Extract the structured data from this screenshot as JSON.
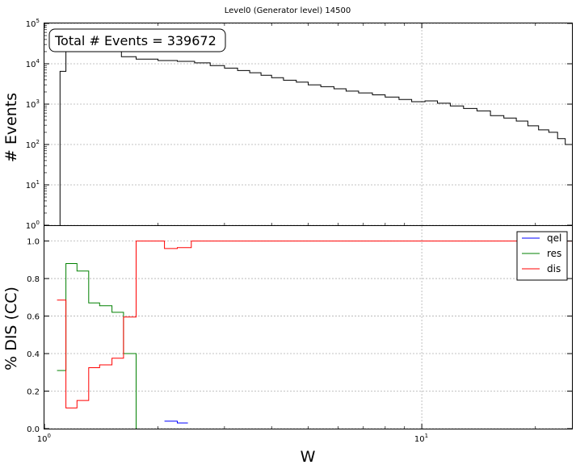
{
  "title": "Level0 (Generator level) 14500",
  "chart_data": [
    {
      "type": "histogram",
      "scale": {
        "x": "log",
        "y": "log"
      },
      "xlim": [
        1,
        25
      ],
      "ylim": [
        1,
        100000
      ],
      "ylabel": "# Events",
      "grid": true,
      "annotation": "Total # Events = 339672",
      "ytick_labels": [
        "10^0",
        "10^1",
        "10^2",
        "10^3",
        "10^4",
        "10^5"
      ],
      "y_ticks": [
        1,
        10,
        100,
        1000,
        10000,
        100000
      ],
      "bins": [
        {
          "x0": 1.1,
          "x1": 1.14,
          "v": 6500
        },
        {
          "x0": 1.14,
          "x1": 1.6,
          "v": 40000
        },
        {
          "x0": 1.6,
          "x1": 1.75,
          "v": 15000
        },
        {
          "x0": 1.75,
          "x1": 2.0,
          "v": 13000
        },
        {
          "x0": 2.0,
          "x1": 2.25,
          "v": 12000
        },
        {
          "x0": 2.25,
          "x1": 2.5,
          "v": 11500
        },
        {
          "x0": 2.5,
          "x1": 2.75,
          "v": 10500
        },
        {
          "x0": 2.75,
          "x1": 3.0,
          "v": 9000
        },
        {
          "x0": 3.0,
          "x1": 3.25,
          "v": 7800
        },
        {
          "x0": 3.25,
          "x1": 3.5,
          "v": 6800
        },
        {
          "x0": 3.5,
          "x1": 3.75,
          "v": 6000
        },
        {
          "x0": 3.75,
          "x1": 4.0,
          "v": 5200
        },
        {
          "x0": 4.0,
          "x1": 4.3,
          "v": 4500
        },
        {
          "x0": 4.3,
          "x1": 4.65,
          "v": 3900
        },
        {
          "x0": 4.65,
          "x1": 5.0,
          "v": 3500
        },
        {
          "x0": 5.0,
          "x1": 5.4,
          "v": 3000
        },
        {
          "x0": 5.4,
          "x1": 5.85,
          "v": 2700
        },
        {
          "x0": 5.85,
          "x1": 6.3,
          "v": 2400
        },
        {
          "x0": 6.3,
          "x1": 6.8,
          "v": 2100
        },
        {
          "x0": 6.8,
          "x1": 7.4,
          "v": 1900
        },
        {
          "x0": 7.4,
          "x1": 8.0,
          "v": 1700
        },
        {
          "x0": 8.0,
          "x1": 8.7,
          "v": 1500
        },
        {
          "x0": 8.7,
          "x1": 9.4,
          "v": 1300
        },
        {
          "x0": 9.4,
          "x1": 10.2,
          "v": 1150
        },
        {
          "x0": 10.2,
          "x1": 11.0,
          "v": 1200
        },
        {
          "x0": 11.0,
          "x1": 11.9,
          "v": 1050
        },
        {
          "x0": 11.9,
          "x1": 12.9,
          "v": 900
        },
        {
          "x0": 12.9,
          "x1": 14.0,
          "v": 780
        },
        {
          "x0": 14.0,
          "x1": 15.2,
          "v": 680
        },
        {
          "x0": 15.2,
          "x1": 16.5,
          "v": 520
        },
        {
          "x0": 16.5,
          "x1": 17.8,
          "v": 450
        },
        {
          "x0": 17.8,
          "x1": 19.1,
          "v": 380
        },
        {
          "x0": 19.1,
          "x1": 20.4,
          "v": 290
        },
        {
          "x0": 20.4,
          "x1": 21.7,
          "v": 230
        },
        {
          "x0": 21.7,
          "x1": 22.9,
          "v": 200
        },
        {
          "x0": 22.9,
          "x1": 24.0,
          "v": 140
        },
        {
          "x0": 24.0,
          "x1": 25.0,
          "v": 100
        }
      ]
    },
    {
      "type": "step",
      "scale": {
        "x": "log",
        "y": "linear"
      },
      "xlim": [
        1,
        25
      ],
      "ylim": [
        0,
        1.08
      ],
      "xlabel": "W",
      "ylabel": "% DIS (CC)",
      "grid": true,
      "legend": "top-right",
      "ytick_labels": [
        "0.0",
        "0.2",
        "0.4",
        "0.6",
        "0.8",
        "1.0"
      ],
      "y_ticks": [
        0,
        0.2,
        0.4,
        0.6,
        0.8,
        1.0
      ],
      "xtick_labels": [
        "10^0",
        "10^1"
      ],
      "x_ticks": [
        1,
        10
      ],
      "series": [
        {
          "name": "qel",
          "color": "#0000ff",
          "steps": [
            {
              "x0": 2.08,
              "x1": 2.25,
              "v": 0.04
            },
            {
              "x0": 2.25,
              "x1": 2.4,
              "v": 0.03
            }
          ]
        },
        {
          "name": "res",
          "color": "#008000",
          "steps": [
            {
              "x0": 1.08,
              "x1": 1.14,
              "v": 0.31
            },
            {
              "x0": 1.14,
              "x1": 1.22,
              "v": 0.88
            },
            {
              "x0": 1.22,
              "x1": 1.31,
              "v": 0.84
            },
            {
              "x0": 1.31,
              "x1": 1.4,
              "v": 0.67
            },
            {
              "x0": 1.4,
              "x1": 1.51,
              "v": 0.655
            },
            {
              "x0": 1.51,
              "x1": 1.62,
              "v": 0.62
            },
            {
              "x0": 1.62,
              "x1": 1.75,
              "v": 0.4
            },
            {
              "x0": 1.75,
              "x1": 1.76,
              "v": 0.0
            }
          ]
        },
        {
          "name": "dis",
          "color": "#ff0000",
          "steps": [
            {
              "x0": 1.08,
              "x1": 1.14,
              "v": 0.685
            },
            {
              "x0": 1.14,
              "x1": 1.22,
              "v": 0.11
            },
            {
              "x0": 1.22,
              "x1": 1.31,
              "v": 0.15
            },
            {
              "x0": 1.31,
              "x1": 1.4,
              "v": 0.325
            },
            {
              "x0": 1.4,
              "x1": 1.51,
              "v": 0.34
            },
            {
              "x0": 1.51,
              "x1": 1.62,
              "v": 0.375
            },
            {
              "x0": 1.62,
              "x1": 1.75,
              "v": 0.595
            },
            {
              "x0": 1.75,
              "x1": 2.08,
              "v": 1.0
            },
            {
              "x0": 2.08,
              "x1": 2.25,
              "v": 0.96
            },
            {
              "x0": 2.25,
              "x1": 2.45,
              "v": 0.965
            },
            {
              "x0": 2.45,
              "x1": 25.0,
              "v": 1.0
            }
          ]
        }
      ]
    }
  ]
}
